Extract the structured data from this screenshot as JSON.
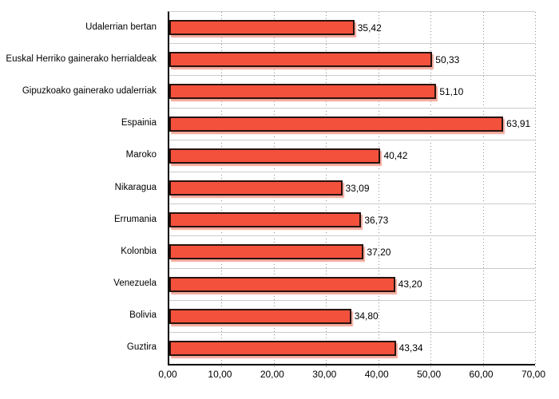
{
  "chart_data": {
    "type": "bar",
    "orientation": "horizontal",
    "title": "",
    "xlabel": "",
    "ylabel": "",
    "legend_position": "none",
    "grid": "vertical-dotted",
    "xlim": [
      0,
      70
    ],
    "categories": [
      "Udalerrian bertan",
      "Euskal Herriko gainerako herrialdeak",
      "Gipuzkoako gainerako udalerriak",
      "Espainia",
      "Maroko",
      "Nikaragua",
      "Errumania",
      "Kolonbia",
      "Venezuela",
      "Bolivia",
      "Guztira"
    ],
    "values": [
      35.42,
      50.33,
      51.1,
      63.91,
      40.42,
      33.09,
      36.73,
      37.2,
      43.2,
      34.8,
      43.34
    ],
    "value_labels": [
      "35,42",
      "50,33",
      "51,10",
      "63,91",
      "40,42",
      "33,09",
      "36,73",
      "37,20",
      "43,20",
      "34,80",
      "43,34"
    ],
    "x_tick_values": [
      0,
      10,
      20,
      30,
      40,
      50,
      60,
      70
    ],
    "x_tick_labels": [
      "0,00",
      "10,00",
      "20,00",
      "30,00",
      "40,00",
      "50,00",
      "60,00",
      "70,00"
    ],
    "colors": {
      "bar_fill": "#f4513c",
      "bar_border": "#26130d",
      "bar_shadow": "#f2a79b",
      "axis_line": "#000000",
      "gridline": "#8f8f8f",
      "band_line": "#cbcbcb",
      "text": "#000000",
      "background": "#ffffff"
    }
  }
}
